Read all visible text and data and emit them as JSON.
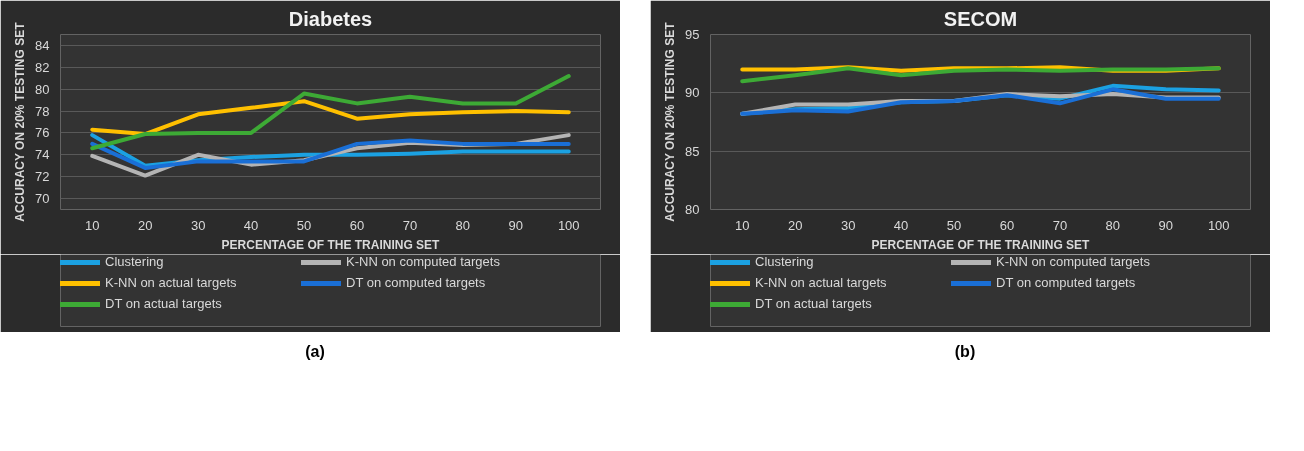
{
  "chart_data": [
    {
      "type": "line",
      "title": "Diabetes",
      "xlabel": "PERCENTAGE OF THE TRAINING SET",
      "ylabel": "ACCURACY ON 20% TESTING SET",
      "categories": [
        "10",
        "20",
        "30",
        "40",
        "50",
        "60",
        "70",
        "80",
        "90",
        "100"
      ],
      "ylim": [
        69,
        85
      ],
      "yticks": [
        70,
        72,
        74,
        76,
        78,
        80,
        82,
        84
      ],
      "grid": "y",
      "legend": "bottom",
      "annotations": [
        "(a)"
      ],
      "series": [
        {
          "name": "Clustering",
          "color": "#1ba1e2",
          "values": [
            75.8,
            73.0,
            73.5,
            73.8,
            74.0,
            74.0,
            74.1,
            74.3,
            74.3,
            74.3
          ]
        },
        {
          "name": "K-NN on computed targets",
          "color": "#b4b4b4",
          "values": [
            73.9,
            72.1,
            74.0,
            73.1,
            73.5,
            74.6,
            75.1,
            74.9,
            75.0,
            75.8
          ]
        },
        {
          "name": "K-NN on actual targets",
          "color": "#ffc000",
          "values": [
            76.3,
            75.9,
            77.7,
            78.3,
            78.9,
            77.3,
            77.7,
            77.9,
            78.0,
            77.9
          ]
        },
        {
          "name": "DT on computed targets",
          "color": "#1a6fd6",
          "values": [
            75.0,
            72.8,
            73.4,
            73.4,
            73.4,
            75.0,
            75.3,
            75.0,
            75.0,
            75.0
          ]
        },
        {
          "name": "DT on actual targets",
          "color": "#3daa35",
          "values": [
            74.6,
            75.9,
            76.0,
            76.0,
            79.6,
            78.7,
            79.3,
            78.7,
            78.7,
            81.2
          ]
        }
      ]
    },
    {
      "type": "line",
      "title": "SECOM",
      "xlabel": "PERCENTAGE OF THE TRAINING SET",
      "ylabel": "ACCURACY ON 20% TESTING SET",
      "categories": [
        "10",
        "20",
        "30",
        "40",
        "50",
        "60",
        "70",
        "80",
        "90",
        "100"
      ],
      "ylim": [
        80,
        95
      ],
      "yticks": [
        80,
        85,
        90,
        95
      ],
      "grid": "y",
      "legend": "bottom",
      "annotations": [
        "(b)"
      ],
      "series": [
        {
          "name": "Clustering",
          "color": "#1ba1e2",
          "values": [
            88.2,
            88.6,
            88.7,
            89.2,
            89.3,
            89.8,
            89.5,
            90.6,
            90.3,
            90.2
          ]
        },
        {
          "name": "K-NN on computed targets",
          "color": "#b4b4b4",
          "values": [
            88.2,
            89.0,
            89.0,
            89.3,
            89.3,
            89.9,
            89.7,
            89.9,
            89.6,
            89.6
          ]
        },
        {
          "name": "K-NN on actual targets",
          "color": "#ffc000",
          "values": [
            92.0,
            92.0,
            92.2,
            91.9,
            92.1,
            92.1,
            92.2,
            91.9,
            91.9,
            92.1
          ]
        },
        {
          "name": "DT on computed targets",
          "color": "#1a6fd6",
          "values": [
            88.2,
            88.5,
            88.4,
            89.2,
            89.3,
            89.8,
            89.1,
            90.3,
            89.5,
            89.5
          ]
        },
        {
          "name": "DT on actual targets",
          "color": "#3daa35",
          "values": [
            91.0,
            91.5,
            92.1,
            91.5,
            91.9,
            92.0,
            91.9,
            92.0,
            92.0,
            92.1
          ]
        }
      ]
    }
  ]
}
